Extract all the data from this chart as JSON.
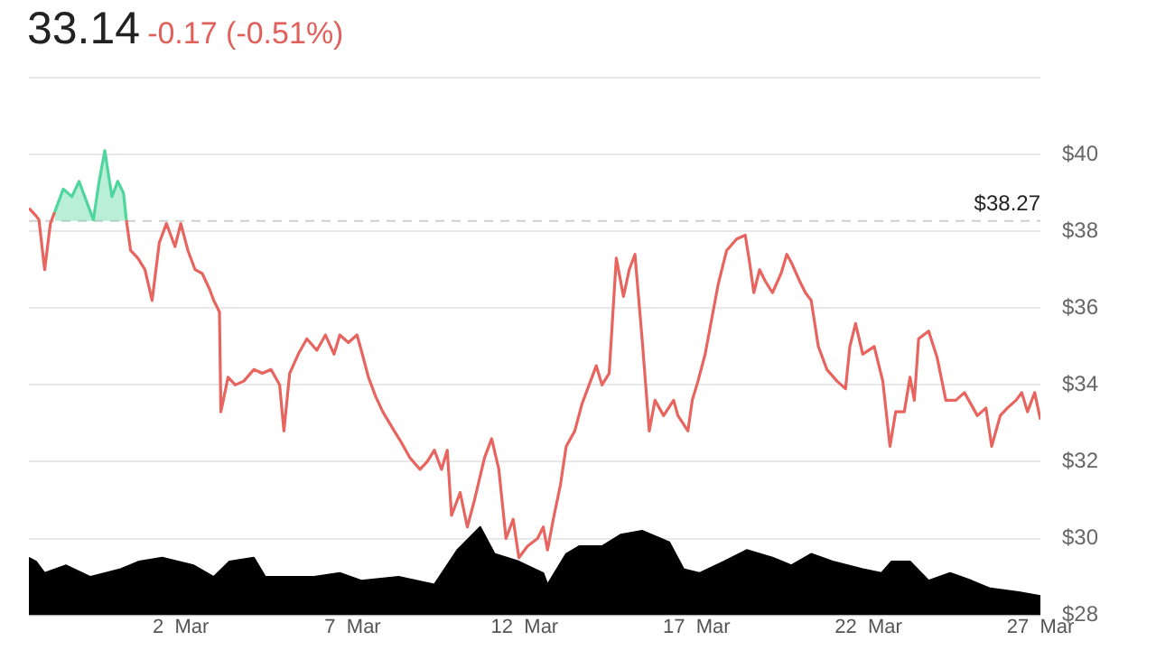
{
  "chart_data": {
    "type": "line",
    "title": "33.14",
    "subtitle": "-0.17 (-0.51%)",
    "xlim": [
      "--02-25T14:00",
      "--03-27T00:00"
    ],
    "xticks": [
      {
        "value": "--03-02",
        "label": "2  Mar"
      },
      {
        "value": "--03-07",
        "label": "7  Mar"
      },
      {
        "value": "--03-12",
        "label": "12  Mar"
      },
      {
        "value": "--03-17",
        "label": "17  Mar"
      },
      {
        "value": "--03-22",
        "label": "22  Mar"
      },
      {
        "value": "--03-27",
        "label": "27  Mar"
      }
    ],
    "ylim": [
      28,
      42
    ],
    "yticks": [
      {
        "value": 28,
        "label": "$28"
      },
      {
        "value": 30,
        "label": "$30"
      },
      {
        "value": 32,
        "label": "$32"
      },
      {
        "value": 34,
        "label": "$34"
      },
      {
        "value": 36,
        "label": "$36"
      },
      {
        "value": 38,
        "label": "$38"
      },
      {
        "value": 40,
        "label": "$40"
      },
      {
        "value": 42,
        "label": null
      }
    ],
    "grid": "y",
    "legend": false,
    "marker": "none",
    "ref_lines": [
      {
        "axis": "y",
        "value": 38.27,
        "label": "$38.27",
        "color": "#cfcfcf",
        "line_style": "dashed"
      }
    ],
    "x": [
      "--02-25T14:00",
      "--02-25T19:00",
      "--02-25T21:00",
      "--02-26T01:00",
      "--02-26T05:00",
      "--02-26T08:00",
      "--02-26T14:00",
      "--02-26T20:00",
      "--02-27T01:00",
      "--02-27T06:00",
      "--02-27T11:00",
      "--02-27T15:00",
      "--02-27T19:00",
      "--02-27T21:00",
      "--02-28T00:00",
      "--02-28T04:00",
      "--02-28T08:00",
      "--02-28T10:00",
      "--02-28T13:00",
      "--02-28T18:00",
      "--02-28T23:00",
      "--03-01T04:00",
      "--03-01T09:00",
      "--03-01T14:00",
      "--03-01T20:00",
      "--03-02T00:00",
      "--03-02T05:00",
      "--03-02T10:00",
      "--03-02T15:00",
      "--03-02T20:00",
      "--03-02T23:00",
      "--03-03T03:00",
      "--03-03T04:00",
      "--03-03T09:00",
      "--03-03T14:00",
      "--03-03T20:00",
      "--03-04T03:00",
      "--03-04T09:00",
      "--03-04T15:00",
      "--03-04T21:00",
      "--03-05T00:00",
      "--03-05T04:00",
      "--03-05T10:00",
      "--03-05T16:00",
      "--03-05T23:00",
      "--03-06T05:00",
      "--03-06T11:00",
      "--03-06T15:00",
      "--03-06T21:00",
      "--03-07T03:00",
      "--03-07T06:00",
      "--03-07T11:00",
      "--03-07T16:00",
      "--03-07T21:00",
      "--03-08T05:00",
      "--03-08T10:00",
      "--03-08T16:00",
      "--03-08T23:00",
      "--03-09T04:00",
      "--03-09T09:00",
      "--03-09T14:00",
      "--03-09T18:00",
      "--03-09T21:00",
      "--03-10T03:00",
      "--03-10T08:00",
      "--03-10T13:00",
      "--03-10T20:00",
      "--03-11T01:00",
      "--03-11T06:00",
      "--03-11T11:00",
      "--03-11T16:00",
      "--03-11T20:00",
      "--03-12T02:00",
      "--03-12T09:00",
      "--03-12T13:00",
      "--03-12T16:00",
      "--03-12T20:00",
      "--03-13T01:00",
      "--03-13T05:00",
      "--03-13T11:00",
      "--03-13T16:00",
      "--03-13T21:00",
      "--03-14T02:00",
      "--03-14T06:00",
      "--03-14T11:00",
      "--03-14T16:00",
      "--03-14T21:00",
      "--03-15T01:00",
      "--03-15T05:00",
      "--03-15T10:00",
      "--03-15T15:00",
      "--03-15T19:00",
      "--03-16T01:00",
      "--03-16T08:00",
      "--03-16T11:00",
      "--03-16T18:00",
      "--03-16T21:00",
      "--03-17T01:00",
      "--03-17T06:00",
      "--03-17T10:00",
      "--03-17T15:00",
      "--03-17T21:00",
      "--03-18T04:00",
      "--03-18T10:00",
      "--03-18T13:00",
      "--03-18T16:00",
      "--03-18T20:00",
      "--03-19T00:00",
      "--03-19T05:00",
      "--03-19T11:00",
      "--03-19T15:00",
      "--03-19T18:00",
      "--03-20T00:00",
      "--03-20T04:00",
      "--03-20T08:00",
      "--03-20T13:00",
      "--03-20T19:00",
      "--03-21T02:00",
      "--03-21T08:00",
      "--03-21T11:00",
      "--03-21T15:00",
      "--03-21T20:00",
      "--03-22T04:00",
      "--03-22T10:00",
      "--03-22T15:00",
      "--03-22T19:00",
      "--03-23T01:00",
      "--03-23T05:00",
      "--03-23T08:00",
      "--03-23T11:00",
      "--03-23T18:00",
      "--03-24T00:00",
      "--03-24T06:00",
      "--03-24T13:00",
      "--03-24T19:00",
      "--03-25T04:00",
      "--03-25T10:00",
      "--03-25T14:00",
      "--03-25T20:00",
      "--03-26T01:00",
      "--03-26T07:00",
      "--03-26T11:00",
      "--03-26T15:00",
      "--03-26T20:00",
      "--03-27T00:00"
    ],
    "series": [
      {
        "type": "area",
        "color": "#000000",
        "x": [
          "--02-25T14:00",
          "--02-25T19:00",
          "--02-26T01:00",
          "--02-26T16:00",
          "--02-27T09:00",
          "--02-28T06:00",
          "--02-28T19:00",
          "--03-01T11:00",
          "--03-02T09:00",
          "--03-02T23:00",
          "--03-03T10:00",
          "--03-04T03:00",
          "--03-04T11:00",
          "--03-05T04:00",
          "--03-05T21:00",
          "--03-06T15:00",
          "--03-07T06:00",
          "--03-08T08:00",
          "--03-09T09:00",
          "--03-10T01:00",
          "--03-10T17:00",
          "--03-11T03:00",
          "--03-11T20:00",
          "--03-12T13:00",
          "--03-12T16:00",
          "--03-13T05:00",
          "--03-13T14:00",
          "--03-14T06:00",
          "--03-14T19:00",
          "--03-15T10:00",
          "--03-16T05:00",
          "--03-16T15:00",
          "--03-17T02:00",
          "--03-17T19:00",
          "--03-18T11:00",
          "--03-19T05:00",
          "--03-19T18:00",
          "--03-20T08:00",
          "--03-20T23:00",
          "--03-21T20:00",
          "--03-22T09:00",
          "--03-22T16:00",
          "--03-23T05:00",
          "--03-23T18:00",
          "--03-24T09:00",
          "--03-25T00:00",
          "--03-25T13:00",
          "--03-26T09:00",
          "--03-27T00:00"
        ],
        "values": [
          29.5,
          29.4,
          29.1,
          29.3,
          29.0,
          29.2,
          29.4,
          29.5,
          29.3,
          29.0,
          29.4,
          29.5,
          29.0,
          29.0,
          29.0,
          29.1,
          28.9,
          29.0,
          28.8,
          29.7,
          30.3,
          29.6,
          29.4,
          29.1,
          28.8,
          29.6,
          29.8,
          29.8,
          30.1,
          30.2,
          29.9,
          29.2,
          29.1,
          29.4,
          29.7,
          29.5,
          29.3,
          29.6,
          29.4,
          29.2,
          29.1,
          29.4,
          29.4,
          28.9,
          29.1,
          28.9,
          28.7,
          28.6,
          28.5
        ]
      },
      {
        "type": "area",
        "color": "#4fd69c",
        "values": [
          null,
          null,
          null,
          null,
          null,
          38.5,
          39.1,
          38.9,
          39.3,
          38.8,
          38.3,
          39.3,
          40.1,
          39.6,
          38.9,
          39.3,
          39.0,
          38.3,
          null,
          null,
          null,
          null,
          null,
          null,
          null,
          null,
          null,
          null,
          null,
          null,
          null,
          null,
          null,
          null,
          null,
          null,
          null,
          null,
          null,
          null,
          null,
          null,
          null,
          null,
          null,
          null,
          null,
          null,
          null,
          null,
          null,
          null,
          null,
          null,
          null,
          null,
          null,
          null,
          null,
          null,
          null,
          null,
          null,
          null,
          null,
          null,
          null,
          null,
          null,
          null,
          null,
          null,
          null,
          null,
          null,
          null,
          null,
          null,
          null,
          null,
          null,
          null,
          null,
          null,
          null,
          null,
          null,
          null,
          null,
          null,
          null,
          null,
          null,
          null,
          null,
          null,
          null,
          null,
          null,
          null,
          null,
          null,
          null,
          null,
          null,
          null,
          null,
          null,
          null,
          null,
          null,
          null,
          null,
          null,
          null,
          null,
          null,
          null,
          null,
          null,
          null,
          null,
          null,
          null,
          null,
          null,
          null,
          null,
          null,
          null,
          null,
          null,
          null,
          null,
          null,
          null,
          null,
          null,
          null,
          null,
          null,
          null,
          null,
          null,
          null
        ]
      },
      {
        "color": "#e8645f",
        "values": [
          38.6,
          38.4,
          38.3,
          37.0,
          38.2,
          38.5,
          null,
          null,
          null,
          null,
          null,
          null,
          null,
          null,
          null,
          null,
          null,
          38.3,
          37.5,
          37.3,
          37.0,
          36.2,
          37.7,
          38.2,
          37.6,
          38.2,
          37.5,
          37.0,
          36.9,
          36.5,
          36.2,
          35.9,
          33.3,
          34.2,
          34.0,
          34.1,
          34.4,
          34.3,
          34.4,
          34.0,
          32.8,
          34.3,
          34.8,
          35.2,
          34.9,
          35.3,
          34.8,
          35.3,
          35.1,
          35.3,
          34.9,
          34.2,
          33.7,
          33.3,
          32.8,
          32.5,
          32.1,
          31.8,
          32.0,
          32.3,
          31.8,
          32.3,
          30.6,
          31.2,
          30.3,
          31.0,
          32.1,
          32.6,
          31.8,
          30.0,
          30.5,
          29.5,
          29.8,
          30.0,
          30.3,
          29.7,
          30.5,
          31.4,
          32.4,
          32.8,
          33.5,
          34.0,
          34.5,
          34.0,
          34.3,
          37.3,
          36.3,
          37.0,
          37.4,
          35.2,
          32.8,
          33.6,
          33.2,
          33.6,
          33.2,
          32.8,
          33.6,
          34.1,
          34.8,
          35.6,
          36.6,
          37.5,
          37.8,
          37.9,
          37.2,
          36.4,
          37.0,
          36.7,
          36.4,
          36.9,
          37.4,
          37.2,
          36.7,
          36.4,
          36.2,
          35.0,
          34.4,
          34.1,
          33.9,
          35.0,
          35.6,
          34.8,
          35.0,
          34.1,
          32.4,
          33.3,
          33.3,
          34.2,
          33.6,
          35.2,
          35.4,
          34.7,
          33.6,
          33.6,
          33.8,
          33.2,
          33.4,
          32.4,
          33.2,
          33.4,
          33.6,
          33.8,
          33.3,
          33.8,
          33.1
        ]
      }
    ]
  }
}
